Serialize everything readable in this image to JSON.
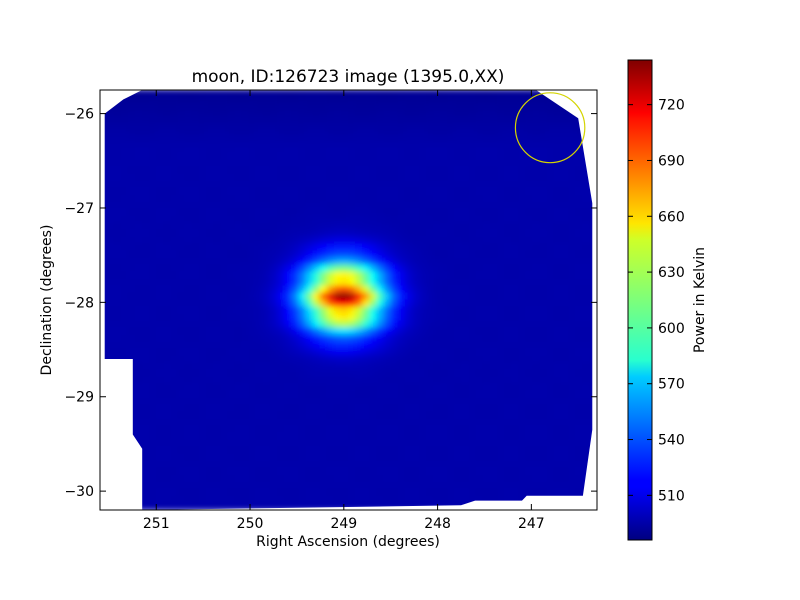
{
  "chart_data": {
    "type": "heatmap",
    "title": "moon, ID:126723 image (1395.0,XX)",
    "xlabel": "Right Ascension (degrees)",
    "ylabel": "Declination (degrees)",
    "x_reversed": true,
    "xlim": [
      251.6,
      246.3
    ],
    "ylim": [
      -30.2,
      -25.75
    ],
    "xticks": [
      251,
      250,
      249,
      248,
      247
    ],
    "xtick_labels": [
      "251",
      "250",
      "249",
      "248",
      "247"
    ],
    "yticks": [
      -26,
      -27,
      -28,
      -29,
      -30
    ],
    "ytick_labels": [
      "−26",
      "−27",
      "−28",
      "−29",
      "−30"
    ],
    "colormap": "jet",
    "colorbar": {
      "label": "Power in Kelvin",
      "min": 486,
      "max": 744,
      "ticks": [
        510,
        540,
        570,
        600,
        630,
        660,
        690,
        720
      ],
      "tick_labels": [
        "510",
        "540",
        "570",
        "600",
        "630",
        "660",
        "690",
        "720"
      ]
    },
    "background_level": 497,
    "source": {
      "ra": 249.0,
      "dec": -27.95,
      "peak": 744
    },
    "field_boundary": [
      [
        251.15,
        -25.75
      ],
      [
        246.95,
        -25.75
      ],
      [
        246.5,
        -26.05
      ],
      [
        246.35,
        -26.95
      ],
      [
        246.35,
        -29.35
      ],
      [
        246.45,
        -30.05
      ],
      [
        247.05,
        -30.05
      ],
      [
        247.1,
        -30.1
      ],
      [
        247.6,
        -30.1
      ],
      [
        247.75,
        -30.15
      ],
      [
        251.15,
        -30.2
      ],
      [
        251.15,
        -29.55
      ],
      [
        251.25,
        -29.4
      ],
      [
        251.25,
        -28.6
      ],
      [
        251.55,
        -28.6
      ],
      [
        251.55,
        -26.0
      ],
      [
        251.35,
        -25.85
      ]
    ],
    "annotation_circle": {
      "ra": 246.8,
      "dec": -26.15,
      "radius_deg": 0.37,
      "color": "#d4d400"
    },
    "grid": false
  }
}
